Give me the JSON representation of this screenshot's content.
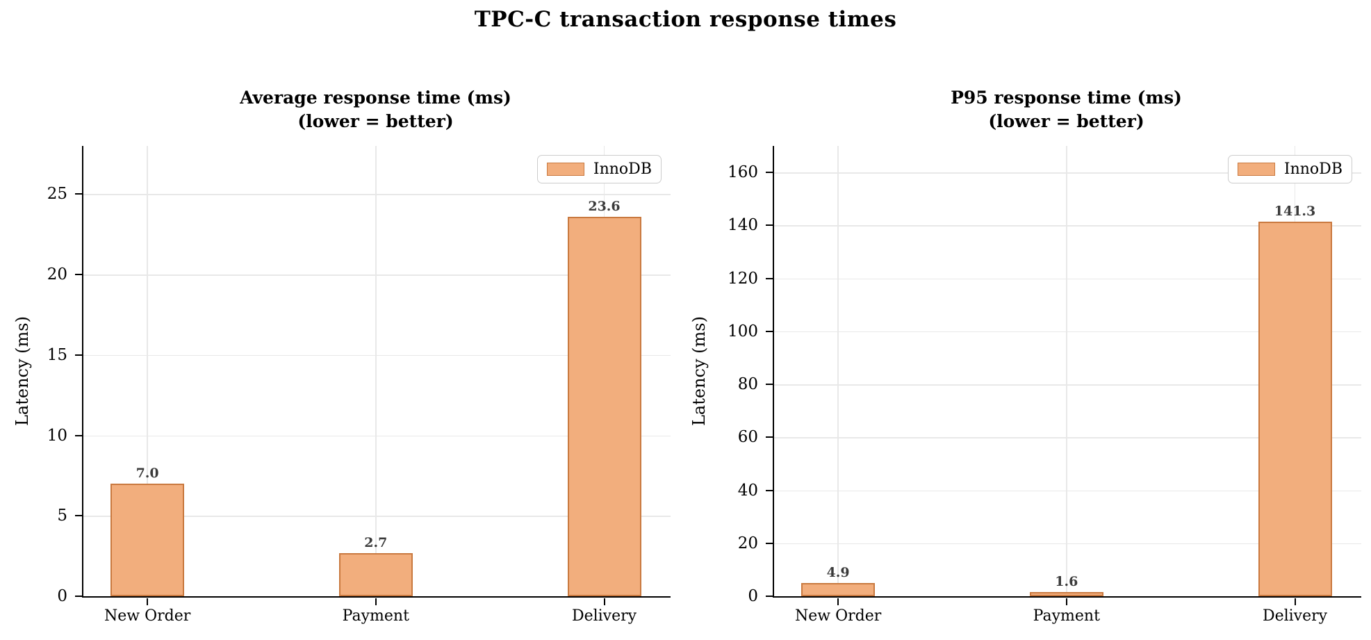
{
  "figure": {
    "title": "TPC-C transaction response times"
  },
  "colors": {
    "bar_fill": "#F2AE7D",
    "bar_edge": "#C9793F",
    "grid": "#E8E8E8",
    "axis": "#000000",
    "value_label": "#3A3A3A",
    "legend_border": "#CCCCCC",
    "background": "#FFFFFF"
  },
  "chart_data": [
    {
      "type": "bar",
      "title": "Average response time (ms)",
      "subtitle": "(lower = better)",
      "ylabel": "Latency (ms)",
      "categories": [
        "New Order",
        "Payment",
        "Delivery"
      ],
      "series": [
        {
          "name": "InnoDB",
          "values": [
            7.0,
            2.7,
            23.6
          ]
        }
      ],
      "value_labels": [
        "7.0",
        "2.7",
        "23.6"
      ],
      "yticks": [
        0,
        5,
        10,
        15,
        20,
        25
      ],
      "ylim": [
        0,
        28
      ],
      "grid": "both",
      "legend_position": "upper right"
    },
    {
      "type": "bar",
      "title": "P95 response time (ms)",
      "subtitle": "(lower = better)",
      "ylabel": "Latency (ms)",
      "categories": [
        "New Order",
        "Payment",
        "Delivery"
      ],
      "series": [
        {
          "name": "InnoDB",
          "values": [
            4.9,
            1.6,
            141.3
          ]
        }
      ],
      "value_labels": [
        "4.9",
        "1.6",
        "141.3"
      ],
      "yticks": [
        0,
        20,
        40,
        60,
        80,
        100,
        120,
        140,
        160
      ],
      "ylim": [
        0,
        170
      ],
      "grid": "both",
      "legend_position": "upper right"
    }
  ]
}
